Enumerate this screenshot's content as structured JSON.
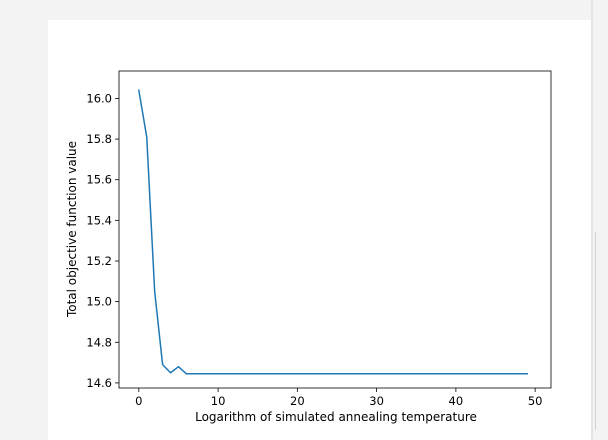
{
  "chart_data": {
    "type": "line",
    "title": "",
    "xlabel": "Logarithm of simulated annealing temperature",
    "ylabel": "Total objective function value",
    "xlim": [
      -2.5,
      52
    ],
    "ylim": [
      14.575,
      16.135
    ],
    "xticks": [
      0,
      10,
      20,
      30,
      40,
      50
    ],
    "xtick_labels": [
      "0",
      "10",
      "20",
      "30",
      "40",
      "50"
    ],
    "yticks": [
      14.6,
      14.8,
      15.0,
      15.2,
      15.4,
      15.6,
      15.8,
      16.0
    ],
    "ytick_labels": [
      "14.6",
      "14.8",
      "15.0",
      "15.2",
      "15.4",
      "15.6",
      "15.8",
      "16.0"
    ],
    "grid": false,
    "legend": "none",
    "series": [
      {
        "color": "#1f77b4",
        "x": [
          0,
          1,
          2,
          3,
          4,
          5,
          6,
          7,
          8,
          9,
          10,
          11,
          12,
          13,
          14,
          15,
          16,
          17,
          18,
          19,
          20,
          21,
          22,
          23,
          24,
          25,
          26,
          27,
          28,
          29,
          30,
          31,
          32,
          33,
          34,
          35,
          36,
          37,
          38,
          39,
          40,
          41,
          42,
          43,
          44,
          45,
          46,
          47,
          48,
          49
        ],
        "y": [
          16.04,
          15.81,
          15.05,
          14.69,
          14.65,
          14.68,
          14.645,
          14.645,
          14.645,
          14.645,
          14.645,
          14.645,
          14.645,
          14.645,
          14.645,
          14.645,
          14.645,
          14.645,
          14.645,
          14.645,
          14.645,
          14.645,
          14.645,
          14.645,
          14.645,
          14.645,
          14.645,
          14.645,
          14.645,
          14.645,
          14.645,
          14.645,
          14.645,
          14.645,
          14.645,
          14.645,
          14.645,
          14.645,
          14.645,
          14.645,
          14.645,
          14.645,
          14.645,
          14.645,
          14.645,
          14.645,
          14.645,
          14.645,
          14.645,
          14.645
        ]
      }
    ]
  }
}
